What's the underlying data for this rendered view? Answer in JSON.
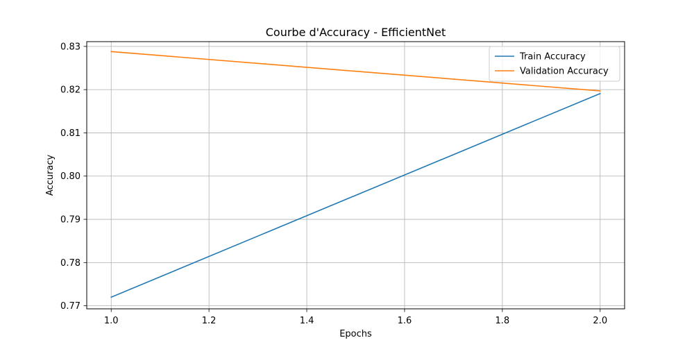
{
  "chart_data": {
    "type": "line",
    "title": "Courbe d'Accuracy - EfficientNet",
    "xlabel": "Epochs",
    "ylabel": "Accuracy",
    "xlim": [
      0.95,
      2.05
    ],
    "ylim": [
      0.7693,
      0.8311
    ],
    "x_ticks": [
      1.0,
      1.2,
      1.4,
      1.6,
      1.8,
      2.0
    ],
    "x_tick_labels": [
      "1.0",
      "1.2",
      "1.4",
      "1.6",
      "1.8",
      "2.0"
    ],
    "y_ticks": [
      0.77,
      0.78,
      0.79,
      0.8,
      0.81,
      0.82,
      0.83
    ],
    "y_tick_labels": [
      "0.77",
      "0.78",
      "0.79",
      "0.80",
      "0.81",
      "0.82",
      "0.83"
    ],
    "grid": true,
    "legend_position": "top-right",
    "series": [
      {
        "name": "Train Accuracy",
        "color": "#1f77b4",
        "x": [
          1.0,
          2.0
        ],
        "y": [
          0.772,
          0.8191
        ]
      },
      {
        "name": "Validation Accuracy",
        "color": "#ff7f0e",
        "x": [
          1.0,
          2.0
        ],
        "y": [
          0.8288,
          0.8197
        ]
      }
    ]
  }
}
